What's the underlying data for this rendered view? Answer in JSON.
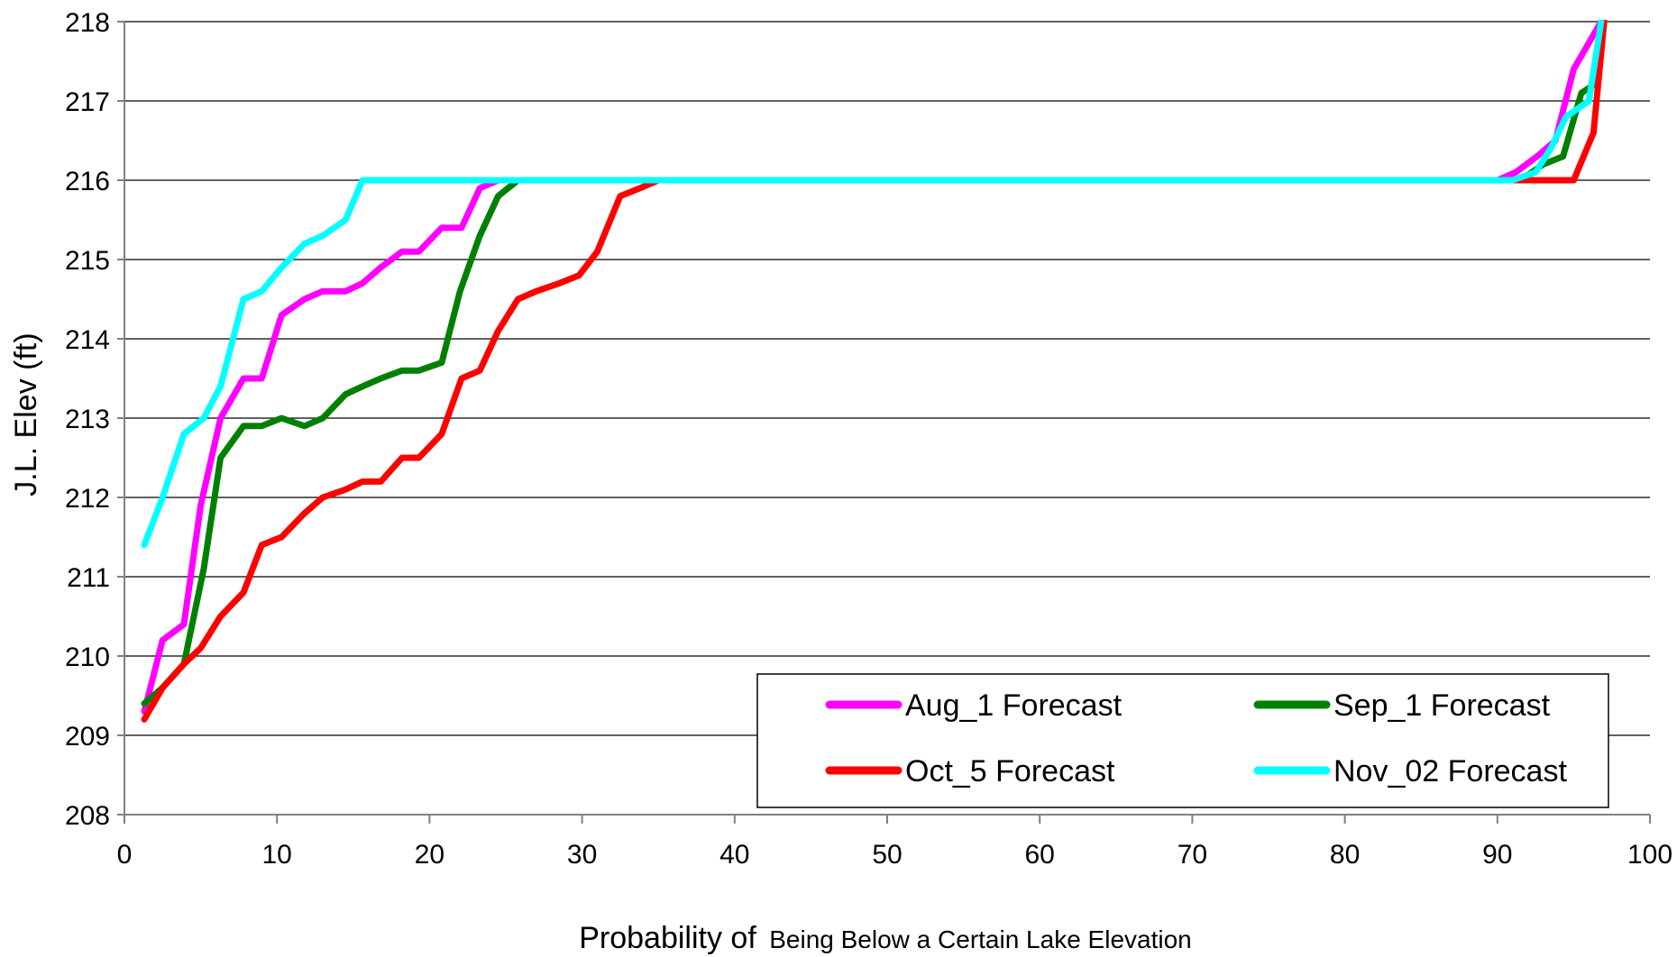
{
  "chart_data": {
    "type": "line",
    "title": "",
    "xlabel_main": "Probability of",
    "xlabel_sub": "Being Below a Certain Lake Elevation",
    "ylabel": "J.L. Elev  (ft)",
    "xlim": [
      0,
      100
    ],
    "ylim": [
      208,
      218
    ],
    "xticks": [
      0,
      10,
      20,
      30,
      40,
      50,
      60,
      70,
      80,
      90,
      100
    ],
    "yticks": [
      208,
      209,
      210,
      211,
      212,
      213,
      214,
      215,
      216,
      217,
      218
    ],
    "grid": "horizontal",
    "legend_position": "bottom-right",
    "series": [
      {
        "name": "Aug_1 Forecast",
        "color": "#ff00ff",
        "x": [
          1.3,
          2.5,
          3.9,
          5.0,
          6.3,
          7.8,
          9.0,
          10.3,
          11.8,
          13.0,
          14.5,
          15.6,
          16.8,
          18.2,
          19.3,
          20.8,
          22.1,
          23.3,
          24.5,
          26.0,
          30,
          40,
          50,
          60,
          70,
          80,
          90,
          91.2,
          92.6,
          93.8,
          95.0,
          96.2,
          96.8
        ],
        "y": [
          209.3,
          210.2,
          210.4,
          211.9,
          213.0,
          213.5,
          213.5,
          214.3,
          214.5,
          214.6,
          214.6,
          214.7,
          214.9,
          215.1,
          215.1,
          215.4,
          215.4,
          215.9,
          216.0,
          216.0,
          216.0,
          216.0,
          216.0,
          216.0,
          216.0,
          216.0,
          216.0,
          216.1,
          216.3,
          216.5,
          217.4,
          217.8,
          218.0
        ]
      },
      {
        "name": "Sep_1 Forecast",
        "color": "#008000",
        "x": [
          1.3,
          2.5,
          3.9,
          5.2,
          6.3,
          7.8,
          9.0,
          10.3,
          11.8,
          13.0,
          14.5,
          15.6,
          16.8,
          18.2,
          19.3,
          20.8,
          22.0,
          23.3,
          24.5,
          25.8,
          30,
          40,
          50,
          60,
          70,
          80,
          90,
          91.5,
          93.0,
          94.3,
          95.5,
          96.3,
          96.8
        ],
        "y": [
          209.4,
          209.6,
          209.9,
          211.1,
          212.5,
          212.9,
          212.9,
          213.0,
          212.9,
          213.0,
          213.3,
          213.4,
          213.5,
          213.6,
          213.6,
          213.7,
          214.6,
          215.3,
          215.8,
          216.0,
          216.0,
          216.0,
          216.0,
          216.0,
          216.0,
          216.0,
          216.0,
          216.0,
          216.2,
          216.3,
          217.1,
          217.2,
          218.0
        ]
      },
      {
        "name": "Oct_5 Forecast",
        "color": "#ff0000",
        "x": [
          1.3,
          2.5,
          3.9,
          5.0,
          6.3,
          7.8,
          9.0,
          10.3,
          11.8,
          13.0,
          14.5,
          15.6,
          16.8,
          18.2,
          19.3,
          20.8,
          22.1,
          23.3,
          24.5,
          25.8,
          27.0,
          28.5,
          29.8,
          31.0,
          32.5,
          33.8,
          35.0,
          40,
          50,
          60,
          70,
          80,
          90,
          92.0,
          94.0,
          95.0,
          96.3,
          97.0
        ],
        "y": [
          209.2,
          209.6,
          209.9,
          210.1,
          210.5,
          210.8,
          211.4,
          211.5,
          211.8,
          212.0,
          212.1,
          212.2,
          212.2,
          212.5,
          212.5,
          212.8,
          213.5,
          213.6,
          214.1,
          214.5,
          214.6,
          214.7,
          214.8,
          215.1,
          215.8,
          215.9,
          216.0,
          216.0,
          216.0,
          216.0,
          216.0,
          216.0,
          216.0,
          216.0,
          216.0,
          216.0,
          216.6,
          218.0
        ]
      },
      {
        "name": "Nov_02 Forecast",
        "color": "#00ffff",
        "x": [
          1.3,
          2.5,
          3.9,
          5.2,
          6.3,
          7.8,
          9.0,
          10.3,
          11.8,
          13.0,
          14.5,
          15.6,
          16.8,
          18.0,
          20,
          30,
          40,
          50,
          60,
          70,
          80,
          90,
          91.0,
          92.5,
          93.5,
          94.5,
          96.0,
          96.8
        ],
        "y": [
          211.4,
          212.0,
          212.8,
          213.0,
          213.4,
          214.5,
          214.6,
          214.9,
          215.2,
          215.3,
          215.5,
          216.0,
          216.0,
          216.0,
          216.0,
          216.0,
          216.0,
          216.0,
          216.0,
          216.0,
          216.0,
          216.0,
          216.0,
          216.1,
          216.4,
          216.8,
          217.0,
          218.0
        ]
      }
    ]
  }
}
